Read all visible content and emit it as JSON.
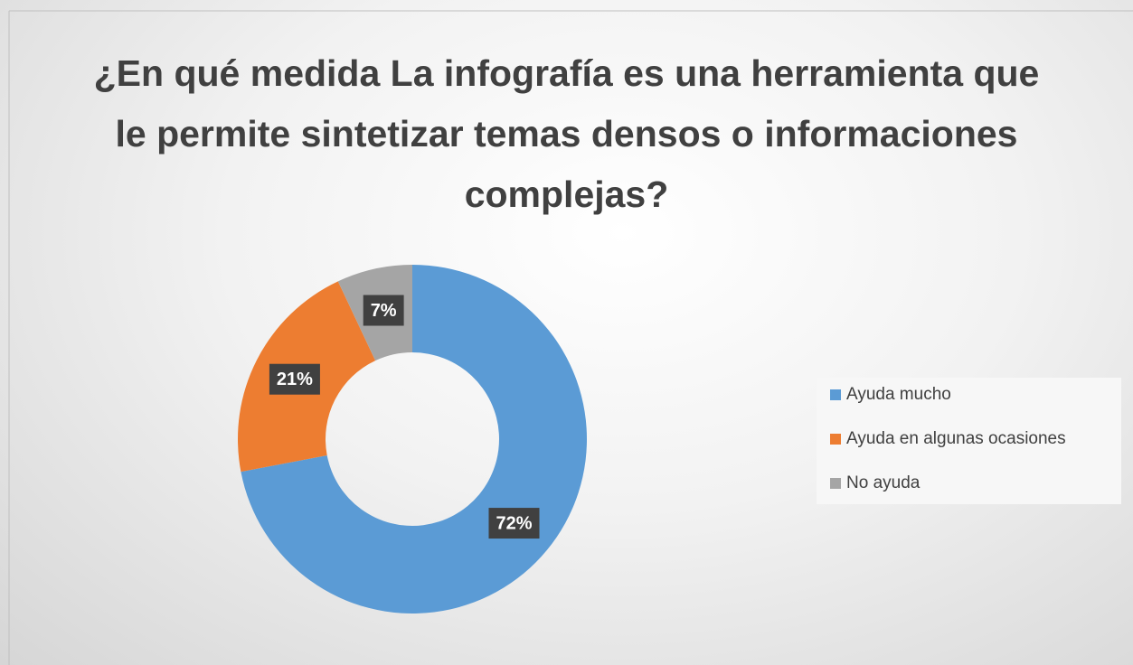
{
  "chart_data": {
    "type": "donut",
    "title": "¿En qué medida La infografía es una herramienta que le permite sintetizar temas densos o informaciones complejas?",
    "categories": [
      "Ayuda mucho",
      "Ayuda en algunas ocasiones",
      "No ayuda"
    ],
    "values": [
      72,
      21,
      7
    ],
    "value_labels": [
      "72%",
      "21%",
      "7%"
    ],
    "colors": [
      "#5b9bd5",
      "#ed7d31",
      "#a5a5a5"
    ],
    "legend": "right"
  }
}
